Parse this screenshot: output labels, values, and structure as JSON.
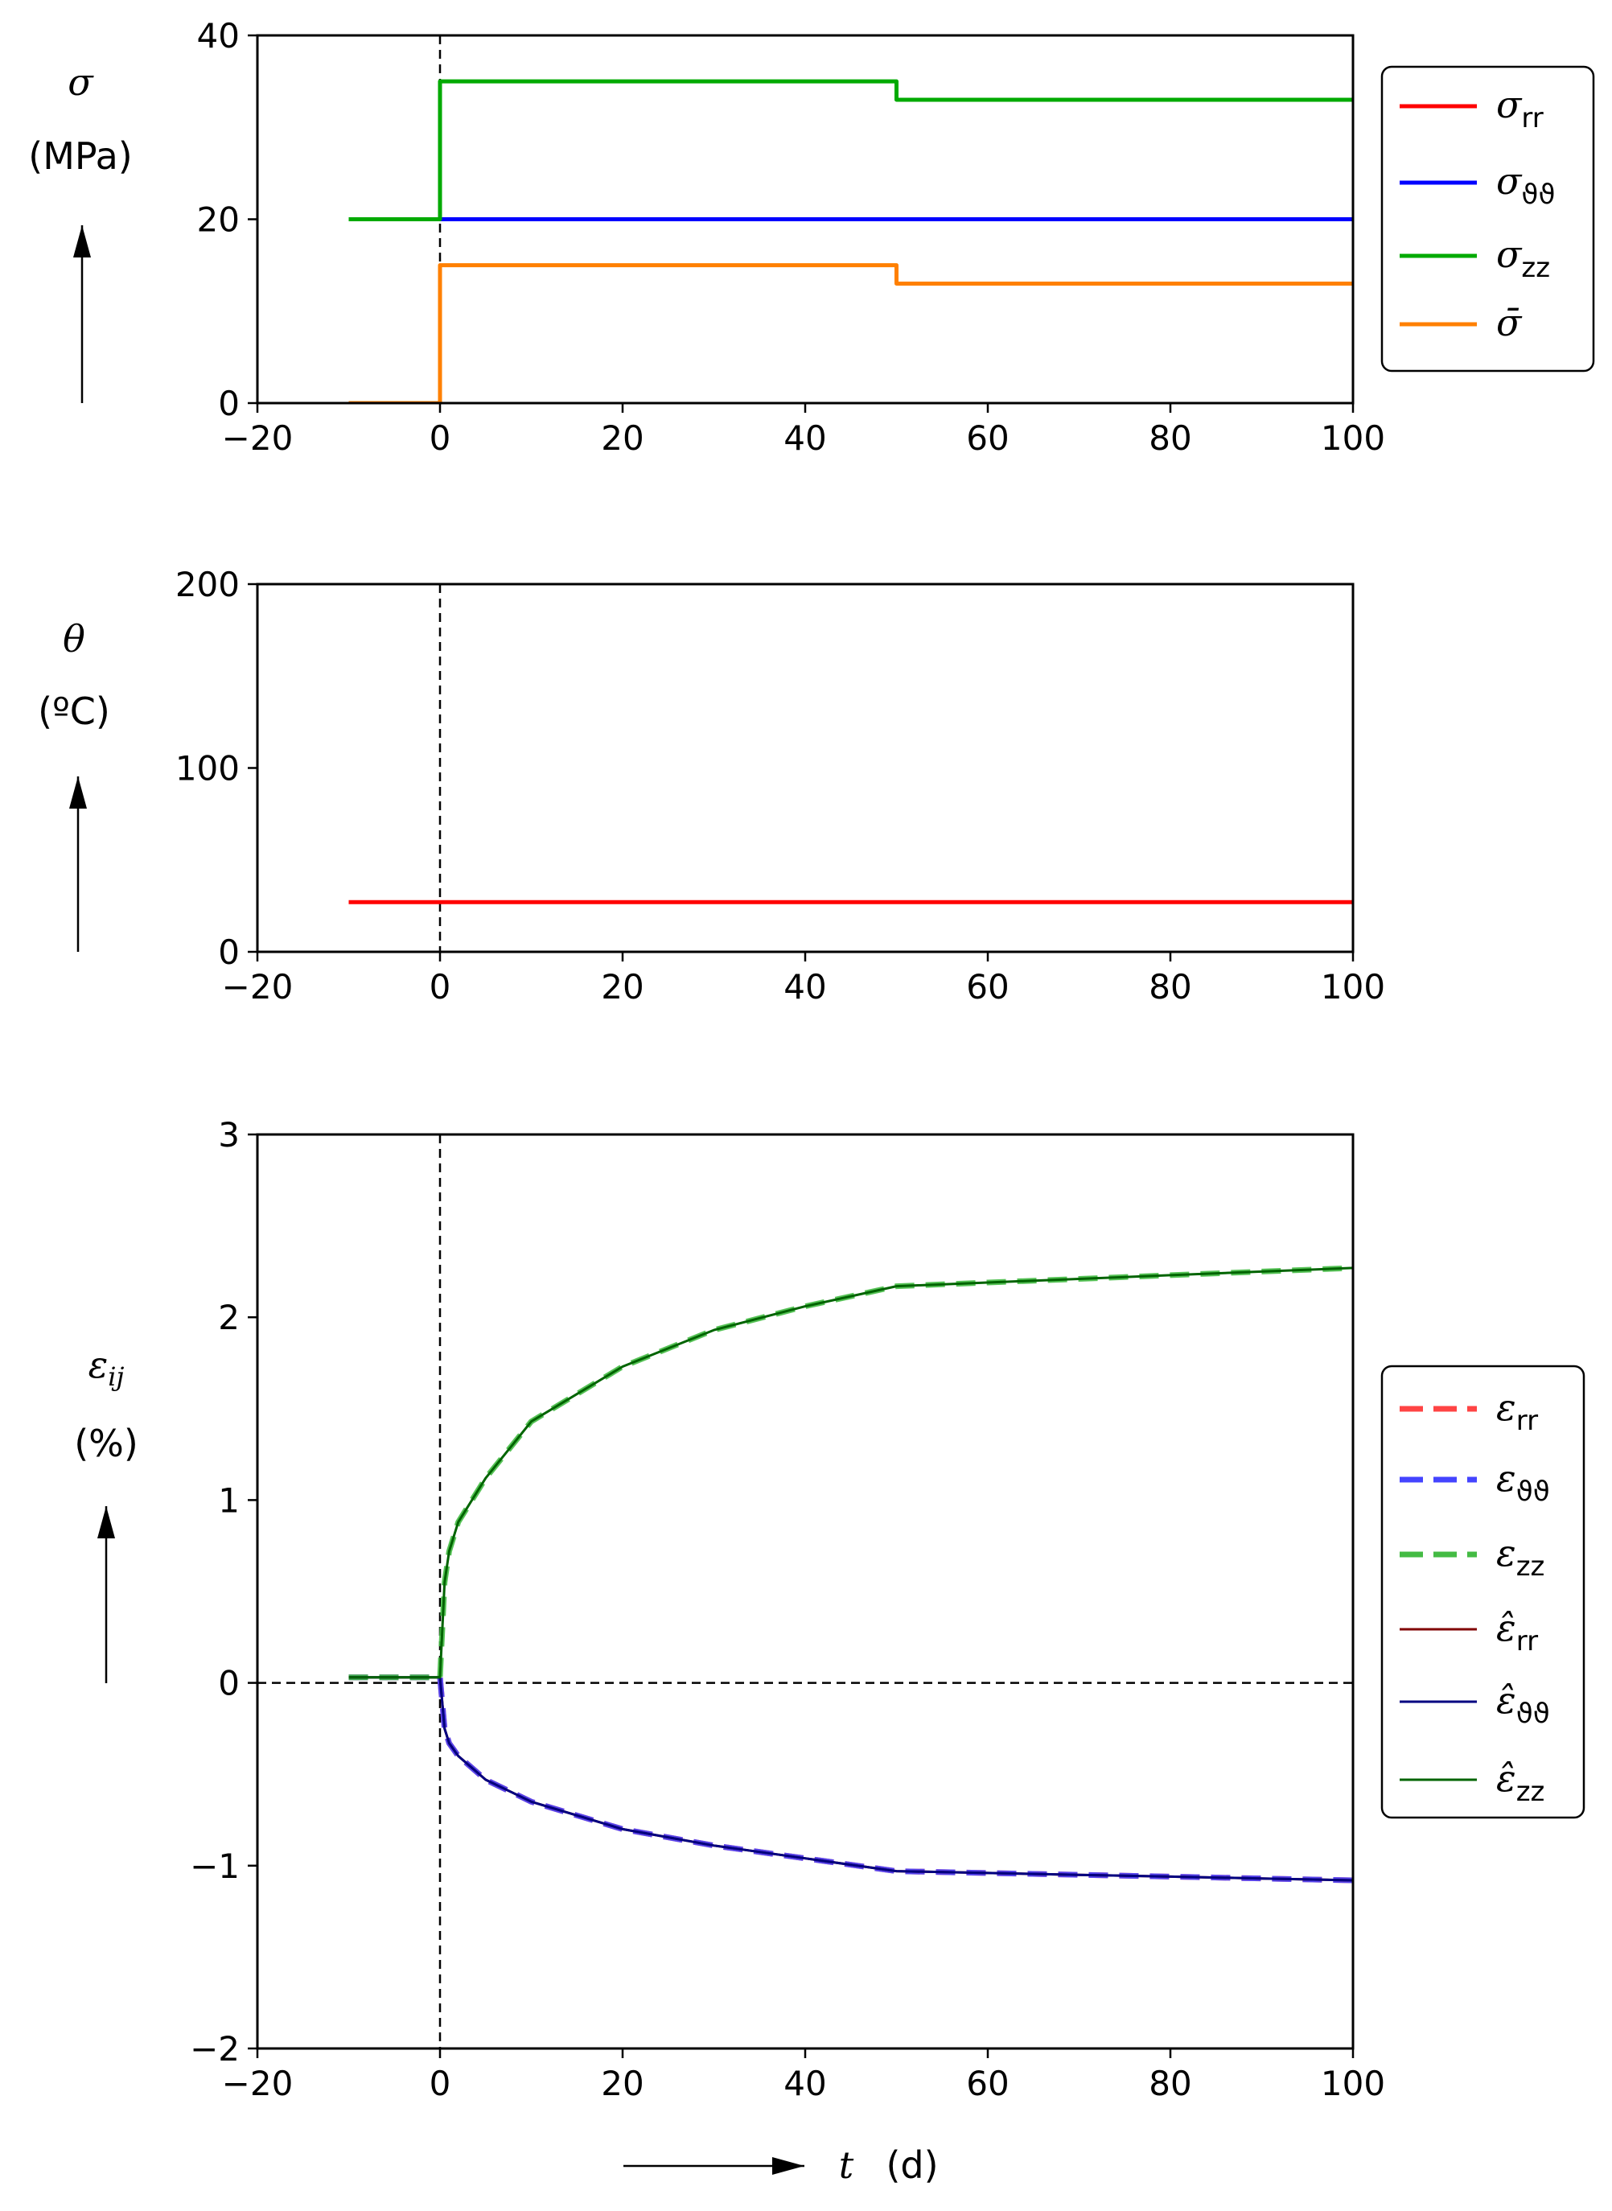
{
  "chart_data": [
    {
      "type": "line",
      "ylabel_symbol": "σ",
      "ylabel_unit": "(MPa)",
      "xlim": [
        -20,
        100
      ],
      "ylim": [
        0,
        40
      ],
      "xticks": [
        "−20",
        "0",
        "20",
        "40",
        "60",
        "80",
        "100"
      ],
      "yticks": [
        "0",
        "20",
        "40"
      ],
      "xtick_values": [
        -20,
        0,
        20,
        40,
        60,
        80,
        100
      ],
      "ytick_values": [
        0,
        20,
        40
      ],
      "vline_x": 0,
      "legend": "right-outside",
      "series": [
        {
          "name": "σ",
          "sub": "rr",
          "color": "#ff0000",
          "dash": "",
          "x": [
            -10,
            0,
            0,
            50,
            50,
            100
          ],
          "y": [
            20,
            20,
            20,
            20,
            20,
            20
          ]
        },
        {
          "name": "σ",
          "sub": "ϑϑ",
          "color": "#0000ff",
          "dash": "",
          "x": [
            -10,
            0,
            0,
            50,
            50,
            100
          ],
          "y": [
            20,
            20,
            20,
            20,
            20,
            20
          ]
        },
        {
          "name": "σ",
          "sub": "zz",
          "color": "#00aa00",
          "dash": "",
          "x": [
            -10,
            0,
            0,
            50,
            50,
            100
          ],
          "y": [
            20,
            20,
            35,
            35,
            33,
            33
          ]
        },
        {
          "name": "σ̄",
          "sub": "",
          "color": "#ff8000",
          "dash": "",
          "x": [
            -10,
            0,
            0,
            50,
            50,
            100
          ],
          "y": [
            0,
            0,
            15,
            15,
            13,
            13
          ]
        }
      ]
    },
    {
      "type": "line",
      "ylabel_symbol": "θ",
      "ylabel_unit": "(ºC)",
      "xlim": [
        -20,
        100
      ],
      "ylim": [
        0,
        200
      ],
      "xticks": [
        "−20",
        "0",
        "20",
        "40",
        "60",
        "80",
        "100"
      ],
      "yticks": [
        "0",
        "100",
        "200"
      ],
      "xtick_values": [
        -20,
        0,
        20,
        40,
        60,
        80,
        100
      ],
      "ytick_values": [
        0,
        100,
        200
      ],
      "vline_x": 0,
      "series": [
        {
          "color": "#ff0000",
          "dash": "",
          "x": [
            -10,
            100
          ],
          "y": [
            27,
            27
          ]
        }
      ]
    },
    {
      "type": "line",
      "ylabel_symbol": "ε",
      "ylabel_sub": "ij",
      "ylabel_unit": "(%)",
      "xlabel_symbol": "t",
      "xlabel_unit": "(d)",
      "xlim": [
        -20,
        100
      ],
      "ylim": [
        -2,
        3
      ],
      "xticks": [
        "−20",
        "0",
        "20",
        "40",
        "60",
        "80",
        "100"
      ],
      "yticks": [
        "−2",
        "−1",
        "0",
        "1",
        "2",
        "3"
      ],
      "xtick_values": [
        -20,
        0,
        20,
        40,
        60,
        80,
        100
      ],
      "ytick_values": [
        -2,
        -1,
        0,
        1,
        2,
        3
      ],
      "vline_x": 0,
      "hline_y": 0,
      "legend": "right-outside",
      "series": [
        {
          "name": "ε",
          "sub": "rr",
          "color": "#ff4444",
          "dash": "dashed",
          "x": [
            -10,
            0,
            0.5,
            1,
            2,
            5,
            10,
            20,
            30,
            40,
            50,
            60,
            70,
            80,
            90,
            100
          ],
          "y": [
            0.03,
            0.03,
            -0.25,
            -0.33,
            -0.4,
            -0.53,
            -0.65,
            -0.8,
            -0.89,
            -0.96,
            -1.03,
            -1.04,
            -1.05,
            -1.06,
            -1.07,
            -1.08
          ]
        },
        {
          "name": "ε",
          "sub": "ϑϑ",
          "color": "#4444ff",
          "dash": "dashed",
          "x": [
            -10,
            0,
            0.5,
            1,
            2,
            5,
            10,
            20,
            30,
            40,
            50,
            60,
            70,
            80,
            90,
            100
          ],
          "y": [
            0.03,
            0.03,
            -0.25,
            -0.33,
            -0.4,
            -0.53,
            -0.65,
            -0.8,
            -0.89,
            -0.96,
            -1.03,
            -1.04,
            -1.05,
            -1.06,
            -1.07,
            -1.08
          ]
        },
        {
          "name": "ε",
          "sub": "zz",
          "color": "#44bb44",
          "dash": "dashed",
          "x": [
            -10,
            0,
            0.5,
            1,
            2,
            5,
            10,
            20,
            30,
            40,
            50,
            60,
            70,
            80,
            90,
            100
          ],
          "y": [
            0.03,
            0.03,
            0.55,
            0.72,
            0.88,
            1.12,
            1.43,
            1.73,
            1.93,
            2.06,
            2.17,
            2.19,
            2.21,
            2.23,
            2.25,
            2.27
          ]
        },
        {
          "name": "ε̂",
          "sub": "rr",
          "color": "#800000",
          "dash": "",
          "x": [
            -10,
            0,
            0.5,
            1,
            2,
            5,
            10,
            20,
            30,
            40,
            50,
            60,
            70,
            80,
            90,
            100
          ],
          "y": [
            0.03,
            0.03,
            -0.25,
            -0.33,
            -0.4,
            -0.53,
            -0.65,
            -0.8,
            -0.89,
            -0.96,
            -1.03,
            -1.04,
            -1.05,
            -1.06,
            -1.07,
            -1.08
          ]
        },
        {
          "name": "ε̂",
          "sub": "ϑϑ",
          "color": "#000080",
          "dash": "",
          "x": [
            -10,
            0,
            0.5,
            1,
            2,
            5,
            10,
            20,
            30,
            40,
            50,
            60,
            70,
            80,
            90,
            100
          ],
          "y": [
            0.03,
            0.03,
            -0.25,
            -0.33,
            -0.4,
            -0.53,
            -0.65,
            -0.8,
            -0.89,
            -0.96,
            -1.03,
            -1.04,
            -1.05,
            -1.06,
            -1.07,
            -1.08
          ]
        },
        {
          "name": "ε̂",
          "sub": "zz",
          "color": "#006400",
          "dash": "",
          "x": [
            -10,
            0,
            0.5,
            1,
            2,
            5,
            10,
            20,
            30,
            40,
            50,
            60,
            70,
            80,
            90,
            100
          ],
          "y": [
            0.03,
            0.03,
            0.55,
            0.72,
            0.88,
            1.12,
            1.43,
            1.73,
            1.93,
            2.06,
            2.17,
            2.19,
            2.21,
            2.23,
            2.25,
            2.27
          ]
        }
      ]
    }
  ]
}
